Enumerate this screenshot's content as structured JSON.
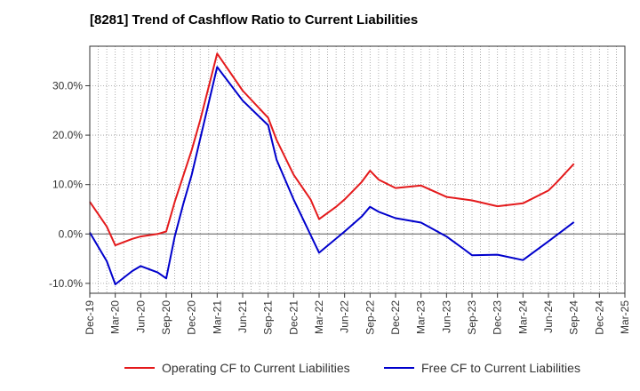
{
  "chart_data": {
    "type": "line",
    "title": "[8281]  Trend of Cashflow Ratio to Current Liabilities",
    "xlabel": "",
    "ylabel": "",
    "x_tick_labels": [
      "Dec-19",
      "Mar-20",
      "Jun-20",
      "Sep-20",
      "Dec-20",
      "Mar-21",
      "Jun-21",
      "Sep-21",
      "Dec-21",
      "Mar-22",
      "Jun-22",
      "Sep-22",
      "Dec-22",
      "Mar-23",
      "Jun-23",
      "Sep-23",
      "Dec-23",
      "Mar-24",
      "Jun-24",
      "Sep-24",
      "Dec-24",
      "Mar-25"
    ],
    "y_tick_labels": [
      "-10.0%",
      "0.0%",
      "10.0%",
      "20.0%",
      "30.0%"
    ],
    "y_ticks": [
      -10,
      0,
      10,
      20,
      30
    ],
    "ylim": [
      -12,
      38
    ],
    "x_range_months": [
      "2019-12",
      "2025-03"
    ],
    "grid": true,
    "grid_style": "dotted",
    "legend_position": "bottom",
    "series": [
      {
        "name": "Operating CF to Current Liabilities",
        "color": "#e41a1c",
        "points": [
          [
            "2019-12",
            6.5
          ],
          [
            "2020-02",
            1.5
          ],
          [
            "2020-03",
            -2.3
          ],
          [
            "2020-05",
            -1.0
          ],
          [
            "2020-06",
            -0.5
          ],
          [
            "2020-08",
            0.0
          ],
          [
            "2020-09",
            0.5
          ],
          [
            "2020-10",
            6.5
          ],
          [
            "2020-12",
            17.0
          ],
          [
            "2021-01",
            23.0
          ],
          [
            "2021-03",
            36.5
          ],
          [
            "2021-04",
            34.0
          ],
          [
            "2021-06",
            29.0
          ],
          [
            "2021-09",
            23.5
          ],
          [
            "2021-10",
            19.0
          ],
          [
            "2021-12",
            12.0
          ],
          [
            "2022-02",
            7.0
          ],
          [
            "2022-03",
            3.0
          ],
          [
            "2022-05",
            5.5
          ],
          [
            "2022-06",
            7.0
          ],
          [
            "2022-08",
            10.5
          ],
          [
            "2022-09",
            12.8
          ],
          [
            "2022-10",
            11.0
          ],
          [
            "2022-12",
            9.3
          ],
          [
            "2023-03",
            9.8
          ],
          [
            "2023-06",
            7.5
          ],
          [
            "2023-09",
            6.8
          ],
          [
            "2023-12",
            5.6
          ],
          [
            "2024-03",
            6.2
          ],
          [
            "2024-06",
            8.8
          ],
          [
            "2024-07",
            10.5
          ],
          [
            "2024-09",
            14.2
          ]
        ]
      },
      {
        "name": "Free CF to Current Liabilities",
        "color": "#0000cc",
        "points": [
          [
            "2019-12",
            0.3
          ],
          [
            "2020-02",
            -5.5
          ],
          [
            "2020-03",
            -10.2
          ],
          [
            "2020-05",
            -7.5
          ],
          [
            "2020-06",
            -6.5
          ],
          [
            "2020-08",
            -7.8
          ],
          [
            "2020-09",
            -9.0
          ],
          [
            "2020-10",
            -0.5
          ],
          [
            "2020-11",
            6.0
          ],
          [
            "2020-12",
            12.0
          ],
          [
            "2021-03",
            33.8
          ],
          [
            "2021-06",
            27.0
          ],
          [
            "2021-09",
            22.0
          ],
          [
            "2021-10",
            15.0
          ],
          [
            "2021-12",
            7.0
          ],
          [
            "2022-03",
            -3.8
          ],
          [
            "2022-06",
            0.5
          ],
          [
            "2022-08",
            3.5
          ],
          [
            "2022-09",
            5.5
          ],
          [
            "2022-10",
            4.5
          ],
          [
            "2022-12",
            3.2
          ],
          [
            "2023-03",
            2.3
          ],
          [
            "2023-06",
            -0.5
          ],
          [
            "2023-08",
            -3.0
          ],
          [
            "2023-09",
            -4.3
          ],
          [
            "2023-12",
            -4.2
          ],
          [
            "2024-03",
            -5.3
          ],
          [
            "2024-06",
            -1.5
          ],
          [
            "2024-09",
            2.4
          ]
        ]
      }
    ]
  }
}
